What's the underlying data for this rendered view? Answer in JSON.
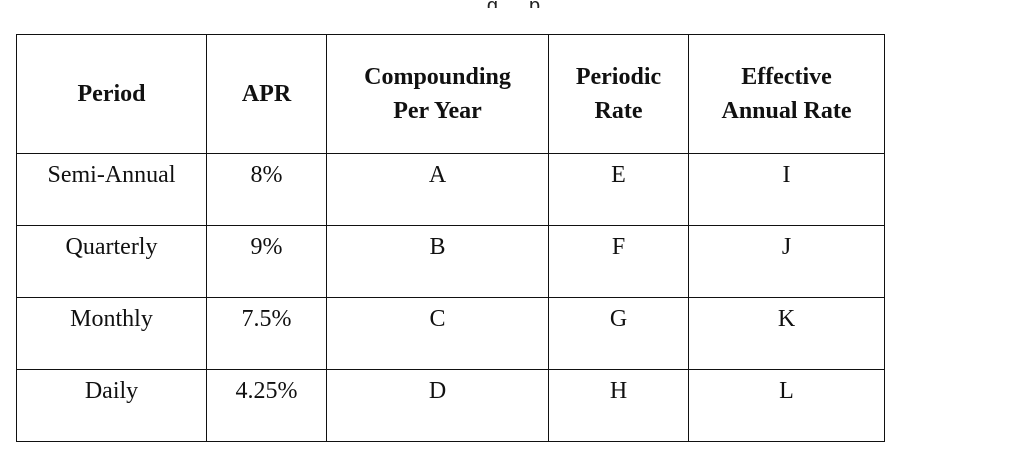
{
  "caption_fragment": "g … p",
  "table": {
    "headers": [
      "Period",
      "APR",
      "Compounding Per Year",
      "Periodic Rate",
      "Effective Annual Rate"
    ],
    "header_lines": [
      [
        "Period"
      ],
      [
        "APR"
      ],
      [
        "Compounding",
        "Per Year"
      ],
      [
        "Periodic",
        "Rate"
      ],
      [
        "Effective",
        "Annual Rate"
      ]
    ],
    "rows": [
      [
        "Semi-Annual",
        "8%",
        "A",
        "E",
        "I"
      ],
      [
        "Quarterly",
        "9%",
        "B",
        "F",
        "J"
      ],
      [
        "Monthly",
        "7.5%",
        "C",
        "G",
        "K"
      ],
      [
        "Daily",
        "4.25%",
        "D",
        "H",
        "L"
      ]
    ]
  }
}
